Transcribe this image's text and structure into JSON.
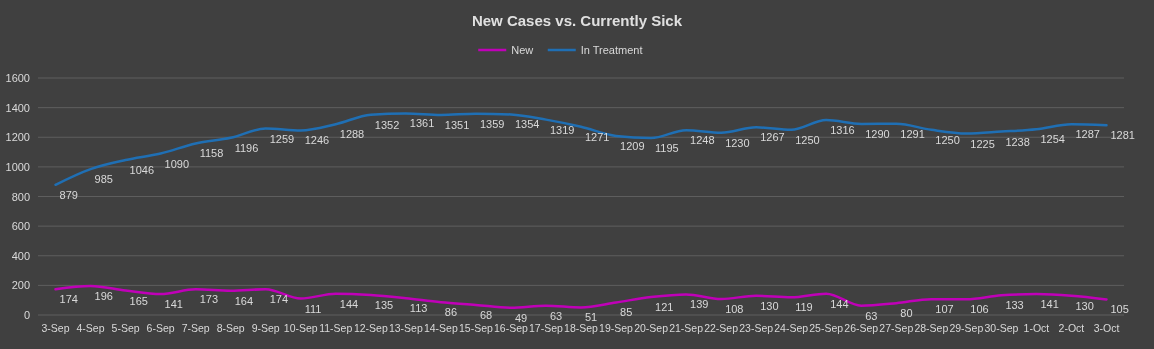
{
  "chart_data": {
    "type": "line",
    "title": "New Cases vs. Currently Sick",
    "categories": [
      "3-Sep",
      "4-Sep",
      "5-Sep",
      "6-Sep",
      "7-Sep",
      "8-Sep",
      "9-Sep",
      "10-Sep",
      "11-Sep",
      "12-Sep",
      "13-Sep",
      "14-Sep",
      "15-Sep",
      "16-Sep",
      "17-Sep",
      "18-Sep",
      "19-Sep",
      "20-Sep",
      "21-Sep",
      "22-Sep",
      "23-Sep",
      "24-Sep",
      "25-Sep",
      "26-Sep",
      "27-Sep",
      "28-Sep",
      "29-Sep",
      "30-Sep",
      "1-Oct",
      "2-Oct",
      "3-Oct"
    ],
    "series": [
      {
        "name": "New",
        "color": "#c000b8",
        "values": [
          174,
          196,
          165,
          141,
          173,
          164,
          174,
          111,
          144,
          135,
          113,
          86,
          68,
          49,
          63,
          51,
          85,
          121,
          139,
          108,
          130,
          119,
          144,
          63,
          80,
          107,
          106,
          133,
          141,
          130,
          105
        ]
      },
      {
        "name": "In Treatment",
        "color": "#1f6fb4",
        "values": [
          879,
          985,
          1046,
          1090,
          1158,
          1196,
          1259,
          1246,
          1288,
          1352,
          1361,
          1351,
          1359,
          1354,
          1319,
          1271,
          1209,
          1195,
          1248,
          1230,
          1267,
          1250,
          1316,
          1290,
          1291,
          1250,
          1225,
          1238,
          1254,
          1287,
          1281
        ]
      }
    ],
    "ylim": [
      0,
      1600
    ],
    "yticks": [
      0,
      200,
      400,
      600,
      800,
      1000,
      1200,
      1400,
      1600
    ],
    "grid": "y",
    "legend": "top",
    "data_labels": true,
    "marker": "none",
    "line_style": "solid"
  }
}
